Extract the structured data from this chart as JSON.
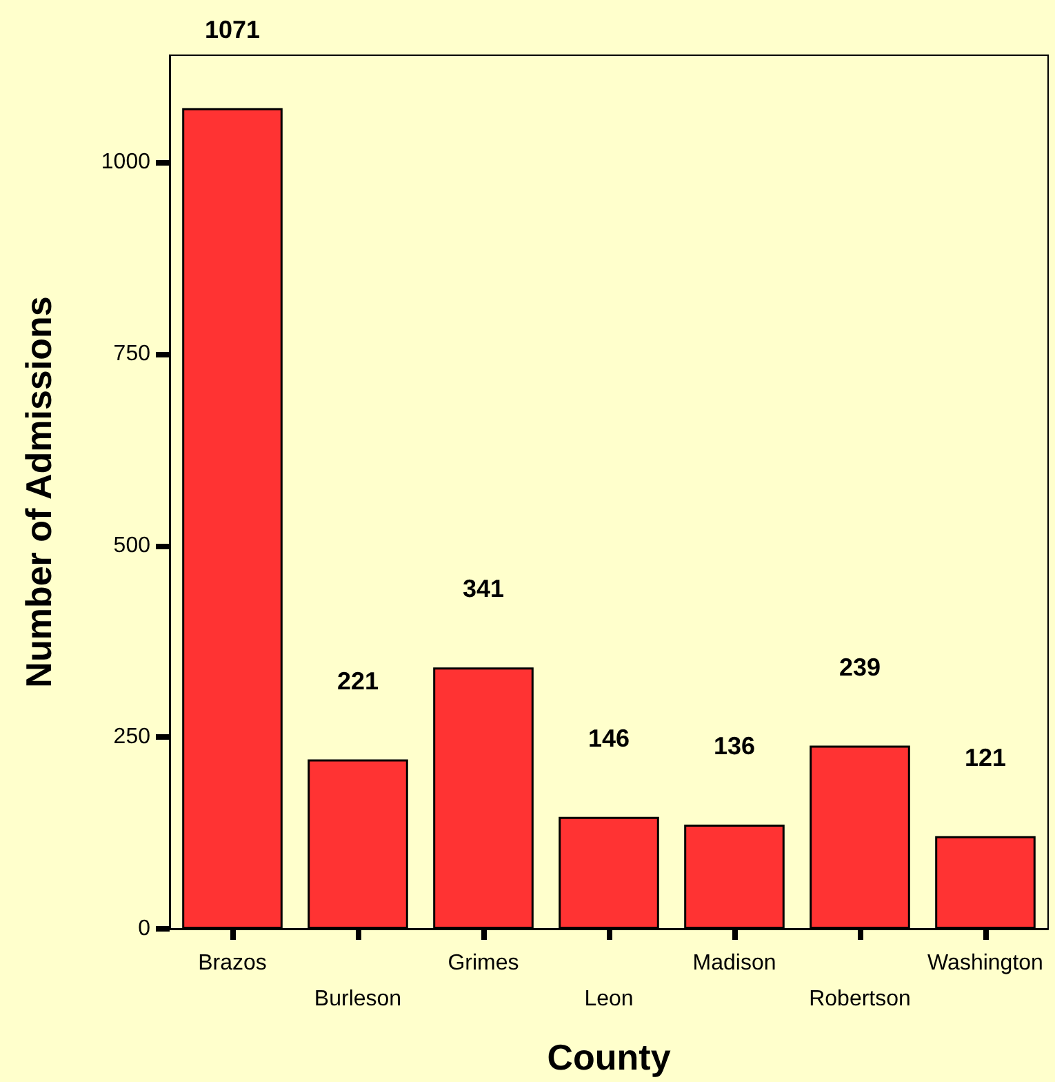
{
  "chart_data": {
    "type": "bar",
    "xlabel": "County",
    "ylabel": "Number of Admissions",
    "categories": [
      "Brazos",
      "Burleson",
      "Grimes",
      "Leon",
      "Madison",
      "Robertson",
      "Washington"
    ],
    "values": [
      1071,
      221,
      341,
      146,
      136,
      239,
      121
    ],
    "color": "#ff3333",
    "ylim": [
      0,
      1140
    ],
    "yticks": [
      0,
      250,
      500,
      750,
      1000
    ],
    "grid": false,
    "data_labels": true
  }
}
